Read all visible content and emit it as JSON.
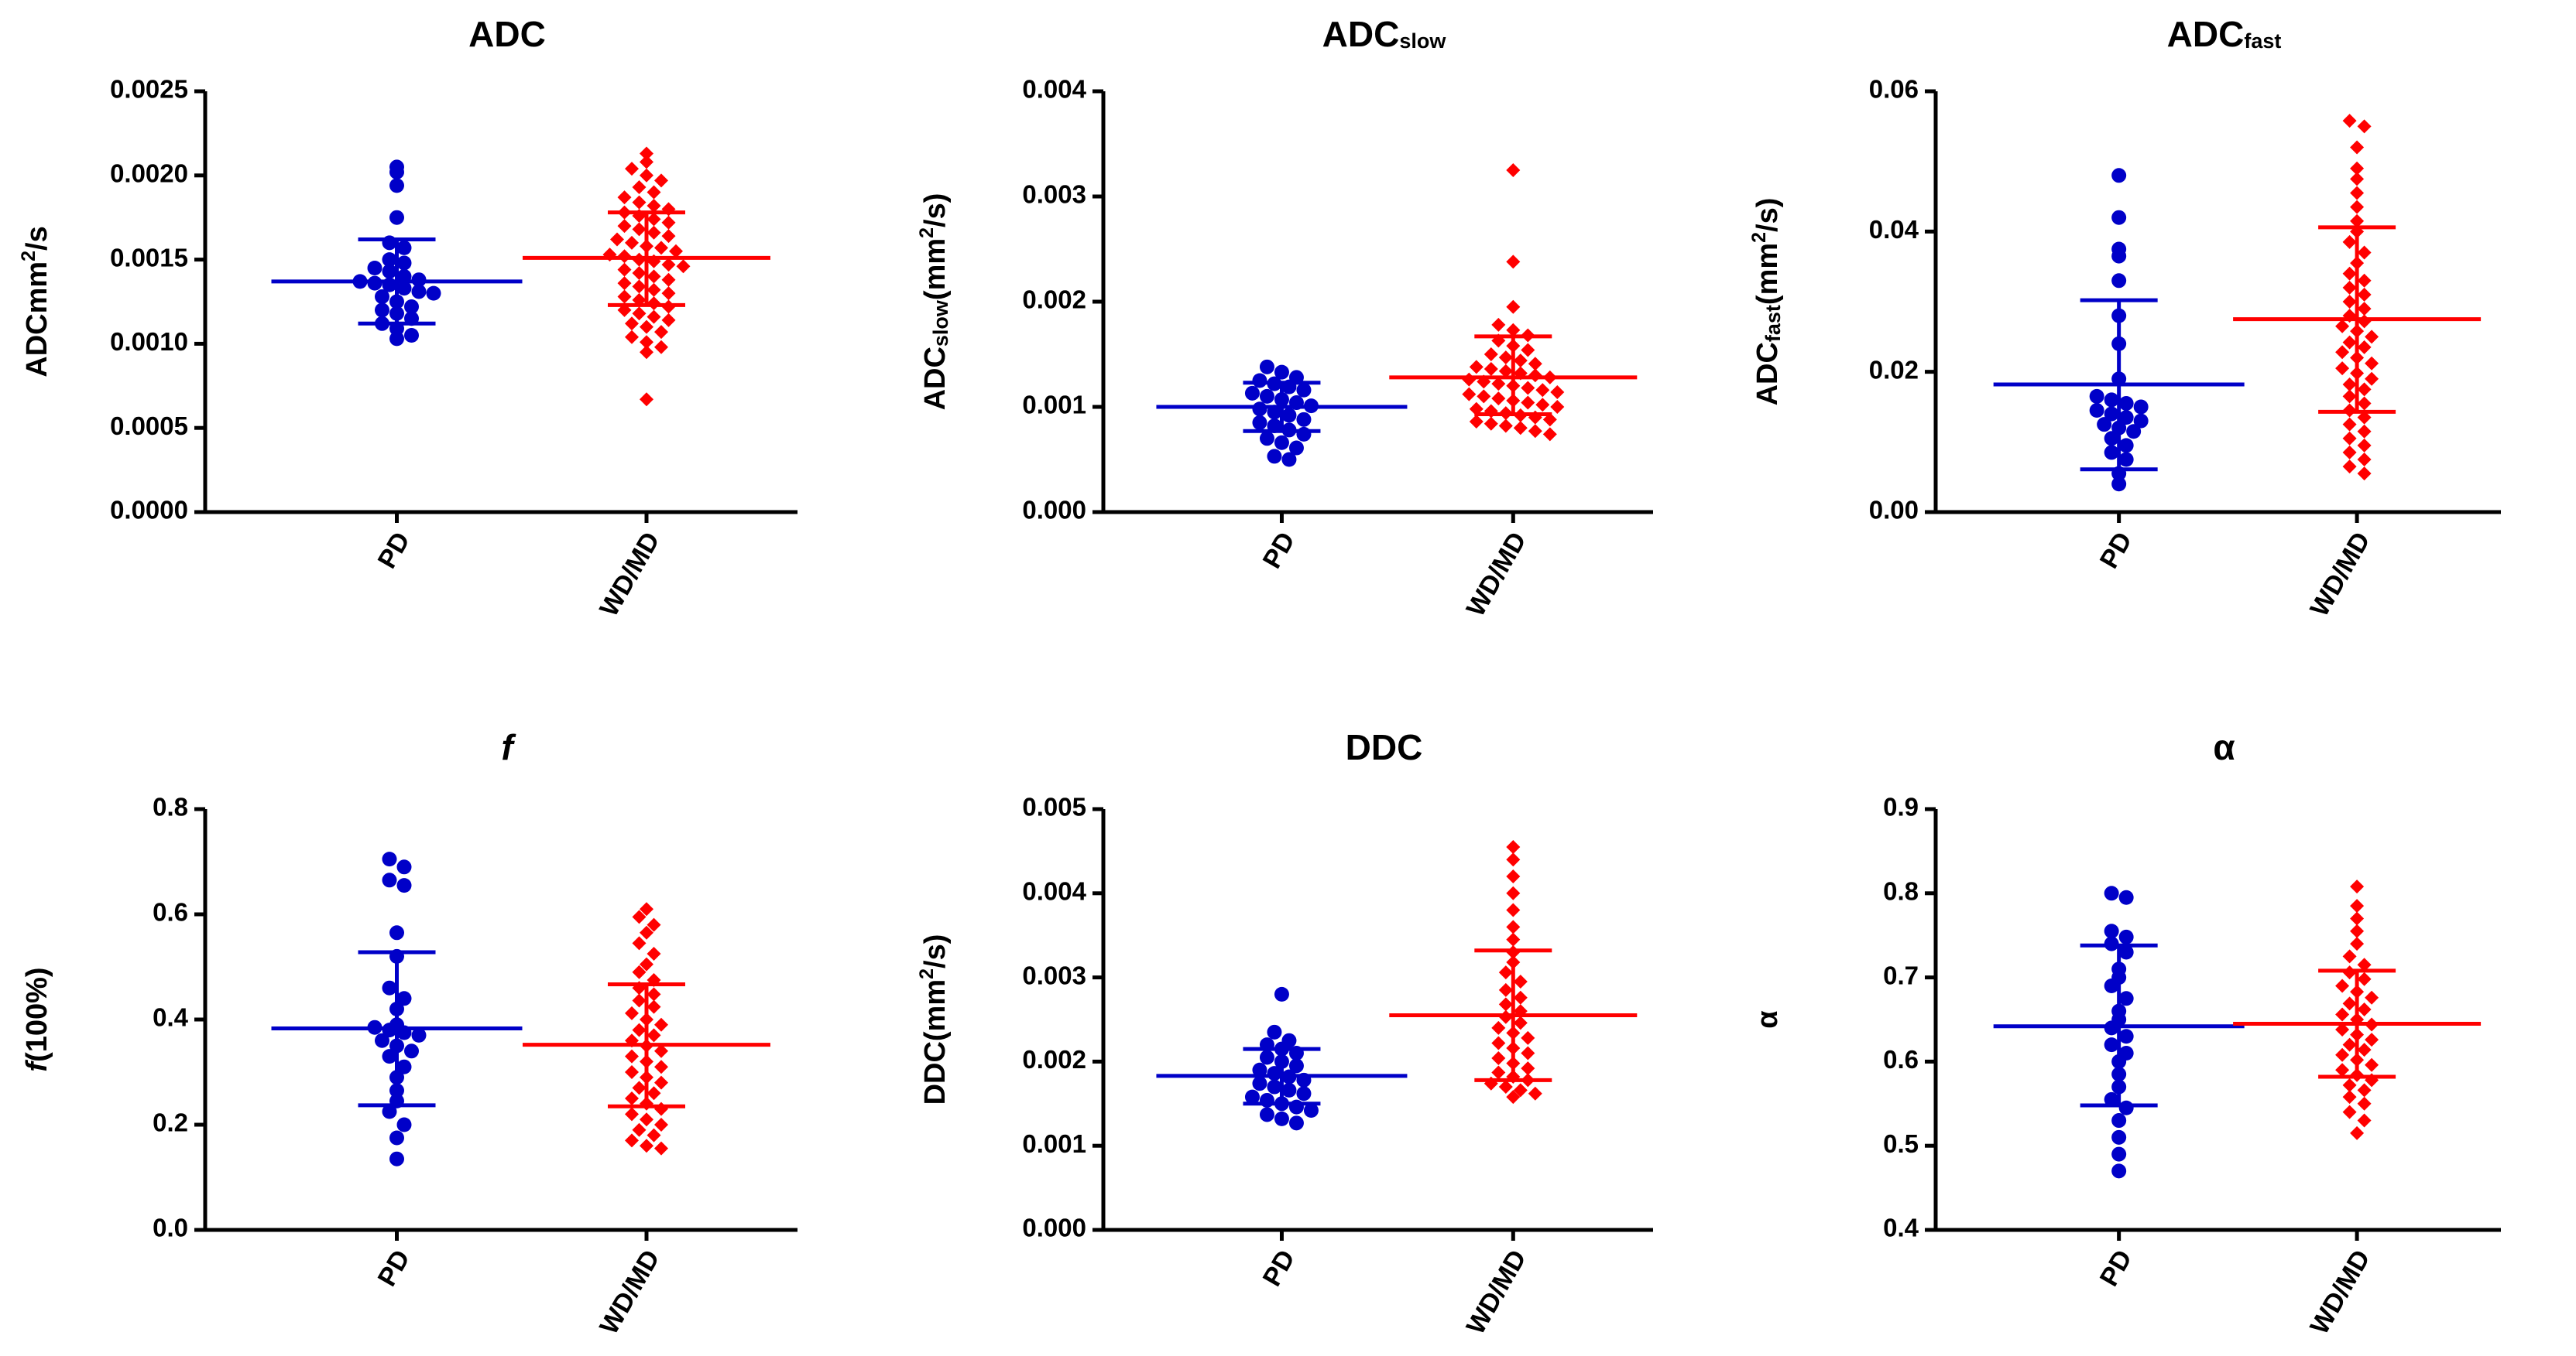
{
  "chart_data": [
    {
      "type": "scatter",
      "title": "ADC",
      "title_parts": [
        {
          "t": "ADC"
        }
      ],
      "ylabel": "ADCmm²/s",
      "ylabel_parts": [
        {
          "t": "ADCmm"
        },
        {
          "t": "2",
          "s": "sup"
        },
        {
          "t": "/s"
        }
      ],
      "categories": [
        "PD",
        "WD/MD"
      ],
      "ylim": [
        0,
        0.0025
      ],
      "yticks": [
        0,
        0.0005,
        0.001,
        0.0015,
        0.002,
        0.0025
      ],
      "ytick_labels": [
        "0.0000",
        "0.0005",
        "0.0010",
        "0.0015",
        "0.0020",
        "0.0025"
      ],
      "series": [
        {
          "name": "PD",
          "color": "#0000c8",
          "marker": "circle",
          "mean": 0.00137,
          "sd_low": 0.00112,
          "sd_high": 0.00162,
          "values": [
            0.00205,
            0.00202,
            0.00194,
            0.00175,
            0.0016,
            0.00157,
            0.0015,
            0.00148,
            0.00145,
            0.00143,
            0.0014,
            0.00138,
            0.00137,
            0.00136,
            0.00135,
            0.00133,
            0.00131,
            0.0013,
            0.00128,
            0.00125,
            0.00122,
            0.0012,
            0.00118,
            0.00115,
            0.00112,
            0.00109,
            0.00105,
            0.00103
          ]
        },
        {
          "name": "WD/MD",
          "color": "#ff0000",
          "marker": "diamond",
          "mean": 0.00151,
          "sd_low": 0.00123,
          "sd_high": 0.00178,
          "values": [
            0.00213,
            0.00208,
            0.00204,
            0.002,
            0.00197,
            0.00193,
            0.0019,
            0.00187,
            0.00184,
            0.00182,
            0.0018,
            0.00178,
            0.00176,
            0.00174,
            0.00172,
            0.0017,
            0.00168,
            0.00166,
            0.00164,
            0.00162,
            0.0016,
            0.00158,
            0.00157,
            0.00155,
            0.00153,
            0.00152,
            0.0015,
            0.00149,
            0.00147,
            0.00146,
            0.00144,
            0.00142,
            0.0014,
            0.00138,
            0.00136,
            0.00134,
            0.00132,
            0.0013,
            0.00128,
            0.00126,
            0.00124,
            0.00122,
            0.0012,
            0.00118,
            0.00116,
            0.00114,
            0.00112,
            0.0011,
            0.00107,
            0.00104,
            0.00101,
            0.00098,
            0.00095,
            0.00067
          ]
        }
      ]
    },
    {
      "type": "scatter",
      "title": "ADCslow",
      "title_parts": [
        {
          "t": "ADC"
        },
        {
          "t": "slow",
          "s": "sub"
        }
      ],
      "ylabel": "ADCslow(mm²/s)",
      "ylabel_parts": [
        {
          "t": "ADC"
        },
        {
          "t": "slow",
          "s": "sub"
        },
        {
          "t": "(mm"
        },
        {
          "t": "2",
          "s": "sup"
        },
        {
          "t": "/s)"
        }
      ],
      "categories": [
        "PD",
        "WD/MD"
      ],
      "ylim": [
        0,
        0.004
      ],
      "yticks": [
        0,
        0.001,
        0.002,
        0.003,
        0.004
      ],
      "ytick_labels": [
        "0.000",
        "0.001",
        "0.002",
        "0.003",
        "0.004"
      ],
      "series": [
        {
          "name": "PD",
          "color": "#0000c8",
          "marker": "circle",
          "mean": 0.001,
          "sd_low": 0.00077,
          "sd_high": 0.00123,
          "values": [
            0.00138,
            0.00133,
            0.00128,
            0.00125,
            0.00122,
            0.00119,
            0.00116,
            0.00113,
            0.0011,
            0.00107,
            0.00104,
            0.00101,
            0.00098,
            0.00095,
            0.00092,
            0.00088,
            0.00085,
            0.00082,
            0.00078,
            0.00074,
            0.0007,
            0.00066,
            0.00061,
            0.00053,
            0.0005
          ]
        },
        {
          "name": "WD/MD",
          "color": "#ff0000",
          "marker": "diamond",
          "mean": 0.00128,
          "sd_low": 0.00093,
          "sd_high": 0.00167,
          "values": [
            0.00325,
            0.00238,
            0.00195,
            0.00178,
            0.00173,
            0.00168,
            0.00163,
            0.00158,
            0.00154,
            0.0015,
            0.00147,
            0.00144,
            0.00141,
            0.00138,
            0.00136,
            0.00134,
            0.00132,
            0.0013,
            0.00128,
            0.00126,
            0.00124,
            0.00122,
            0.0012,
            0.00118,
            0.00116,
            0.00114,
            0.00112,
            0.0011,
            0.00108,
            0.00106,
            0.00104,
            0.00102,
            0.001,
            0.00098,
            0.00096,
            0.00094,
            0.00092,
            0.0009,
            0.00088,
            0.00086,
            0.00084,
            0.00082,
            0.0008,
            0.00077,
            0.00074
          ]
        }
      ]
    },
    {
      "type": "scatter",
      "title": "ADCfast",
      "title_parts": [
        {
          "t": "ADC"
        },
        {
          "t": "fast",
          "s": "sub"
        }
      ],
      "ylabel": "ADCfast(mm²/s)",
      "ylabel_parts": [
        {
          "t": "ADC"
        },
        {
          "t": "fast",
          "s": "sub"
        },
        {
          "t": "(mm"
        },
        {
          "t": "2",
          "s": "sup"
        },
        {
          "t": "/s)"
        }
      ],
      "categories": [
        "PD",
        "WD/MD"
      ],
      "ylim": [
        0,
        0.06
      ],
      "yticks": [
        0,
        0.02,
        0.04,
        0.06
      ],
      "ytick_labels": [
        "0.00",
        "0.02",
        "0.04",
        "0.06"
      ],
      "series": [
        {
          "name": "PD",
          "color": "#0000c8",
          "marker": "circle",
          "mean": 0.0182,
          "sd_low": 0.0061,
          "sd_high": 0.0302,
          "values": [
            0.048,
            0.042,
            0.0375,
            0.0365,
            0.033,
            0.028,
            0.024,
            0.019,
            0.0165,
            0.016,
            0.0155,
            0.015,
            0.0145,
            0.014,
            0.0135,
            0.013,
            0.0125,
            0.012,
            0.0115,
            0.0105,
            0.0095,
            0.0085,
            0.0075,
            0.0055,
            0.004
          ]
        },
        {
          "name": "WD/MD",
          "color": "#ff0000",
          "marker": "diamond",
          "mean": 0.0275,
          "sd_low": 0.0143,
          "sd_high": 0.0406,
          "values": [
            0.0558,
            0.055,
            0.052,
            0.049,
            0.0475,
            0.0455,
            0.0435,
            0.0415,
            0.04,
            0.0385,
            0.037,
            0.0355,
            0.034,
            0.033,
            0.032,
            0.031,
            0.03,
            0.029,
            0.028,
            0.0272,
            0.0265,
            0.0258,
            0.025,
            0.0242,
            0.0235,
            0.0228,
            0.022,
            0.0212,
            0.0205,
            0.0198,
            0.019,
            0.0182,
            0.0175,
            0.0165,
            0.0155,
            0.0145,
            0.0135,
            0.0125,
            0.0115,
            0.0105,
            0.0095,
            0.0085,
            0.0075,
            0.0065,
            0.0055
          ]
        }
      ]
    },
    {
      "type": "scatter",
      "title": "f",
      "title_parts": [
        {
          "t": "f",
          "s": "it"
        }
      ],
      "ylabel": "f(100%)",
      "ylabel_parts": [
        {
          "t": "f",
          "s": "it"
        },
        {
          "t": "(100%)"
        }
      ],
      "categories": [
        "PD",
        "WD/MD"
      ],
      "ylim": [
        0,
        0.8
      ],
      "yticks": [
        0,
        0.2,
        0.4,
        0.6,
        0.8
      ],
      "ytick_labels": [
        "0.0",
        "0.2",
        "0.4",
        "0.6",
        "0.8"
      ],
      "series": [
        {
          "name": "PD",
          "color": "#0000c8",
          "marker": "circle",
          "mean": 0.383,
          "sd_low": 0.237,
          "sd_high": 0.528,
          "values": [
            0.705,
            0.69,
            0.665,
            0.655,
            0.565,
            0.52,
            0.46,
            0.44,
            0.42,
            0.39,
            0.385,
            0.38,
            0.375,
            0.37,
            0.36,
            0.35,
            0.34,
            0.33,
            0.31,
            0.29,
            0.265,
            0.245,
            0.225,
            0.2,
            0.175,
            0.135
          ]
        },
        {
          "name": "WD/MD",
          "color": "#ff0000",
          "marker": "diamond",
          "mean": 0.352,
          "sd_low": 0.235,
          "sd_high": 0.467,
          "values": [
            0.61,
            0.595,
            0.58,
            0.565,
            0.545,
            0.525,
            0.505,
            0.49,
            0.475,
            0.46,
            0.448,
            0.436,
            0.424,
            0.412,
            0.4,
            0.39,
            0.38,
            0.37,
            0.36,
            0.35,
            0.34,
            0.33,
            0.32,
            0.31,
            0.3,
            0.29,
            0.28,
            0.27,
            0.26,
            0.25,
            0.24,
            0.23,
            0.22,
            0.21,
            0.2,
            0.19,
            0.18,
            0.17,
            0.16,
            0.155
          ]
        }
      ]
    },
    {
      "type": "scatter",
      "title": "DDC",
      "title_parts": [
        {
          "t": "DDC"
        }
      ],
      "ylabel": "DDC(mm²/s)",
      "ylabel_parts": [
        {
          "t": "DDC(mm"
        },
        {
          "t": "2",
          "s": "sup"
        },
        {
          "t": "/s)"
        }
      ],
      "categories": [
        "PD",
        "WD/MD"
      ],
      "ylim": [
        0,
        0.005
      ],
      "yticks": [
        0,
        0.001,
        0.002,
        0.003,
        0.004,
        0.005
      ],
      "ytick_labels": [
        "0.000",
        "0.001",
        "0.002",
        "0.003",
        "0.004",
        "0.005"
      ],
      "series": [
        {
          "name": "PD",
          "color": "#0000c8",
          "marker": "circle",
          "mean": 0.00183,
          "sd_low": 0.0015,
          "sd_high": 0.00215,
          "values": [
            0.0028,
            0.00235,
            0.00225,
            0.0022,
            0.00215,
            0.0021,
            0.00205,
            0.002,
            0.00195,
            0.0019,
            0.00186,
            0.00182,
            0.00178,
            0.00174,
            0.0017,
            0.00166,
            0.00162,
            0.00158,
            0.00154,
            0.0015,
            0.00146,
            0.00142,
            0.00137,
            0.00132,
            0.00127
          ]
        },
        {
          "name": "WD/MD",
          "color": "#ff0000",
          "marker": "diamond",
          "mean": 0.00255,
          "sd_low": 0.00178,
          "sd_high": 0.00332,
          "values": [
            0.00455,
            0.0044,
            0.0042,
            0.004,
            0.0038,
            0.0036,
            0.00345,
            0.0033,
            0.00318,
            0.00306,
            0.00295,
            0.00285,
            0.00276,
            0.00268,
            0.0026,
            0.00253,
            0.00246,
            0.0024,
            0.00234,
            0.00228,
            0.00222,
            0.00216,
            0.0021,
            0.00204,
            0.00198,
            0.00192,
            0.00187,
            0.00182,
            0.00178,
            0.00174,
            0.0017,
            0.00166,
            0.00162,
            0.00158
          ]
        }
      ]
    },
    {
      "type": "scatter",
      "title": "α",
      "title_parts": [
        {
          "t": "α"
        }
      ],
      "ylabel": "α",
      "ylabel_parts": [
        {
          "t": "α"
        }
      ],
      "categories": [
        "PD",
        "WD/MD"
      ],
      "ylim": [
        0.4,
        0.9
      ],
      "yticks": [
        0.4,
        0.5,
        0.6,
        0.7,
        0.8,
        0.9
      ],
      "ytick_labels": [
        "0.4",
        "0.5",
        "0.6",
        "0.7",
        "0.8",
        "0.9"
      ],
      "series": [
        {
          "name": "PD",
          "color": "#0000c8",
          "marker": "circle",
          "mean": 0.642,
          "sd_low": 0.548,
          "sd_high": 0.738,
          "values": [
            0.8,
            0.795,
            0.755,
            0.748,
            0.74,
            0.73,
            0.71,
            0.7,
            0.69,
            0.675,
            0.66,
            0.65,
            0.64,
            0.63,
            0.62,
            0.61,
            0.6,
            0.585,
            0.57,
            0.555,
            0.545,
            0.53,
            0.51,
            0.49,
            0.47
          ]
        },
        {
          "name": "WD/MD",
          "color": "#ff0000",
          "marker": "diamond",
          "mean": 0.645,
          "sd_low": 0.582,
          "sd_high": 0.708,
          "values": [
            0.808,
            0.785,
            0.77,
            0.755,
            0.74,
            0.725,
            0.715,
            0.706,
            0.698,
            0.69,
            0.683,
            0.676,
            0.669,
            0.662,
            0.656,
            0.65,
            0.644,
            0.638,
            0.632,
            0.626,
            0.62,
            0.614,
            0.608,
            0.602,
            0.596,
            0.59,
            0.584,
            0.578,
            0.572,
            0.566,
            0.558,
            0.55,
            0.54,
            0.53,
            0.515
          ]
        }
      ]
    }
  ]
}
